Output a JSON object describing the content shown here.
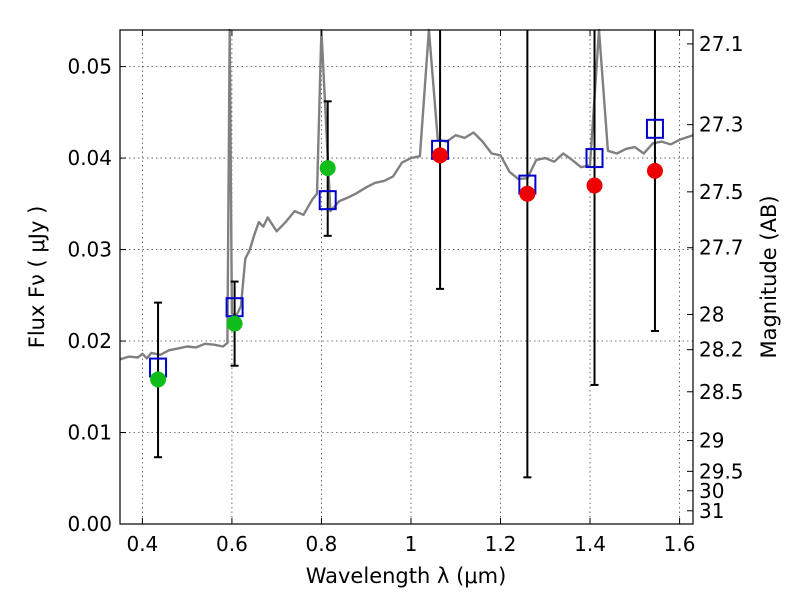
{
  "chart_data": {
    "type": "scatter",
    "xlabel": "Wavelength  λ (μm)",
    "ylabel": "Flux  Fν  ( μJy )",
    "ylabel_right": "Magnitude (AB)",
    "xlim": [
      0.35,
      1.63
    ],
    "ylim": [
      0.0,
      0.054
    ],
    "grid": true,
    "x_ticks": [
      0.4,
      0.6,
      0.8,
      1.0,
      1.2,
      1.4,
      1.6
    ],
    "x_tick_labels": [
      "0.4",
      "0.6",
      "0.8",
      "1",
      "1.2",
      "1.4",
      "1.6"
    ],
    "y_ticks": [
      0.0,
      0.01,
      0.02,
      0.03,
      0.04,
      0.05
    ],
    "y_tick_labels": [
      "0.00",
      "0.01",
      "0.02",
      "0.03",
      "0.04",
      "0.05"
    ],
    "mag_ticks": [
      27.1,
      27.3,
      27.5,
      27.7,
      28,
      28.2,
      28.5,
      29,
      29.5,
      30,
      31
    ],
    "mag_tick_labels": [
      "27.1",
      "27.3",
      "27.5",
      "27.7",
      "28",
      "28.2",
      "28.5",
      "29",
      "29.5",
      "30",
      "31"
    ],
    "observed_green": [
      {
        "x": 0.435,
        "y": 0.0158,
        "err_lo": 0.0073,
        "err_hi": 0.0242
      },
      {
        "x": 0.606,
        "y": 0.0219,
        "err_lo": 0.0173,
        "err_hi": 0.0265
      },
      {
        "x": 0.814,
        "y": 0.0389,
        "err_lo": 0.0315,
        "err_hi": 0.0462
      }
    ],
    "observed_red": [
      {
        "x": 1.065,
        "y": 0.0403,
        "err_lo": 0.0257,
        "err_hi": 0.054
      },
      {
        "x": 1.26,
        "y": 0.0361,
        "err_lo": 0.0051,
        "err_hi": 0.054
      },
      {
        "x": 1.41,
        "y": 0.037,
        "err_lo": 0.0152,
        "err_hi": 0.054
      },
      {
        "x": 1.545,
        "y": 0.0386,
        "err_lo": 0.0211,
        "err_hi": 0.054
      }
    ],
    "model_squares": [
      {
        "x": 0.435,
        "y": 0.0171
      },
      {
        "x": 0.606,
        "y": 0.0237
      },
      {
        "x": 0.814,
        "y": 0.0354
      },
      {
        "x": 1.065,
        "y": 0.0409
      },
      {
        "x": 1.26,
        "y": 0.0371
      },
      {
        "x": 1.41,
        "y": 0.04
      },
      {
        "x": 1.545,
        "y": 0.0432
      }
    ],
    "sed_curve": {
      "x": [
        0.35,
        0.37,
        0.39,
        0.4,
        0.41,
        0.42,
        0.44,
        0.46,
        0.48,
        0.5,
        0.52,
        0.54,
        0.56,
        0.58,
        0.59,
        0.595,
        0.6,
        0.61,
        0.62,
        0.63,
        0.64,
        0.65,
        0.66,
        0.67,
        0.68,
        0.7,
        0.72,
        0.74,
        0.76,
        0.78,
        0.79,
        0.8,
        0.82,
        0.84,
        0.86,
        0.88,
        0.9,
        0.92,
        0.94,
        0.96,
        0.98,
        1.0,
        1.02,
        1.04,
        1.06,
        1.08,
        1.1,
        1.12,
        1.14,
        1.16,
        1.18,
        1.2,
        1.22,
        1.24,
        1.26,
        1.28,
        1.3,
        1.32,
        1.34,
        1.36,
        1.38,
        1.4,
        1.42,
        1.44,
        1.46,
        1.48,
        1.5,
        1.52,
        1.54,
        1.56,
        1.58,
        1.6,
        1.63
      ],
      "y": [
        0.018,
        0.0183,
        0.0182,
        0.0186,
        0.0181,
        0.0187,
        0.0185,
        0.019,
        0.0192,
        0.0194,
        0.0193,
        0.0197,
        0.0196,
        0.0194,
        0.0198,
        0.055,
        0.023,
        0.0228,
        0.0238,
        0.029,
        0.03,
        0.0316,
        0.033,
        0.0325,
        0.0335,
        0.032,
        0.033,
        0.0342,
        0.0338,
        0.0355,
        0.0361,
        0.055,
        0.0342,
        0.0353,
        0.0357,
        0.0362,
        0.0368,
        0.0373,
        0.0375,
        0.038,
        0.0395,
        0.04,
        0.0402,
        0.055,
        0.042,
        0.0418,
        0.0425,
        0.0422,
        0.0428,
        0.0418,
        0.0405,
        0.0403,
        0.0385,
        0.0377,
        0.0378,
        0.0398,
        0.04,
        0.0396,
        0.0405,
        0.0398,
        0.039,
        0.0392,
        0.055,
        0.0408,
        0.0405,
        0.041,
        0.0412,
        0.0405,
        0.0416,
        0.0418,
        0.0415,
        0.042,
        0.0425
      ]
    }
  }
}
